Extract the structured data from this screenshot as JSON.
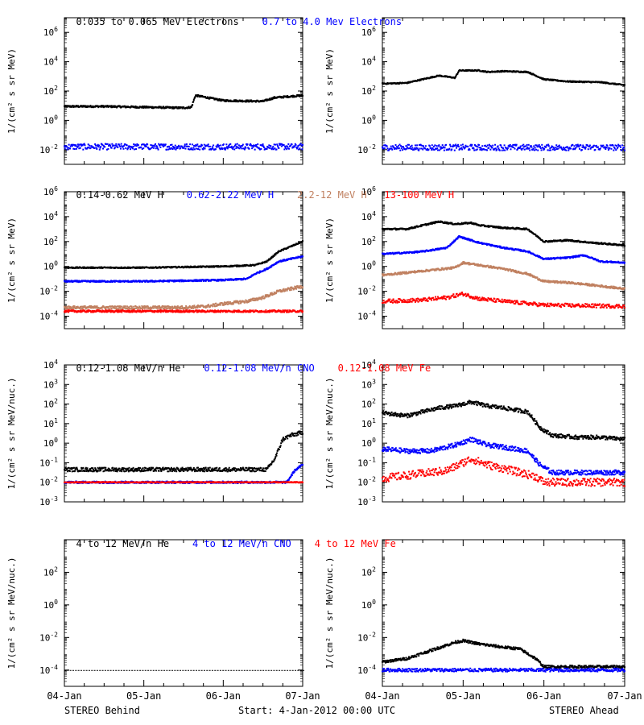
{
  "legends": [
    [
      {
        "text": "0.035 to 0.065 MeV Electrons",
        "color": "#000000"
      },
      {
        "text": "0.7 to 4.0 Mev Electrons",
        "color": "#0000ff"
      }
    ],
    [
      {
        "text": "0.14-0.62 MeV H",
        "color": "#000000"
      },
      {
        "text": "0.62-2.22 MeV H",
        "color": "#0000ff"
      },
      {
        "text": "2.2-12 MeV H",
        "color": "#c08060"
      },
      {
        "text": "13-100 MeV H",
        "color": "#ff0000"
      }
    ],
    [
      {
        "text": "0.12-1.08 MeV/n He",
        "color": "#000000"
      },
      {
        "text": "0.12-1.08 MeV/n CNO",
        "color": "#0000ff"
      },
      {
        "text": "0.12-1.08 MeV Fe",
        "color": "#ff0000"
      }
    ],
    [
      {
        "text": "4 to 12 MeV/n He",
        "color": "#000000"
      },
      {
        "text": "4 to 12 MeV/n CNO",
        "color": "#0000ff"
      },
      {
        "text": "4 to 12 MeV Fe",
        "color": "#ff0000"
      }
    ]
  ],
  "footer": {
    "left": "STEREO Behind",
    "center": "Start:  4-Jan-2012 00:00 UTC",
    "right": "STEREO Ahead"
  },
  "chart_data": [
    {
      "type": "scatter",
      "row": 0,
      "side": "left",
      "ylabel": "1/(cm² s sr MeV)",
      "yscale": "log",
      "ylim": [
        -3,
        7
      ],
      "yticks": [
        {
          "exp": -2,
          "label": "10",
          "sup": "-2"
        },
        {
          "exp": 0,
          "label": "10",
          "sup": "0"
        },
        {
          "exp": 2,
          "label": "10",
          "sup": "2"
        },
        {
          "exp": 4,
          "label": "10",
          "sup": "4"
        },
        {
          "exp": 6,
          "label": "10",
          "sup": "6"
        }
      ],
      "xlim": [
        0,
        3
      ],
      "series": [
        {
          "name": "0.035 to 0.065 MeV Electrons",
          "color": "#000000",
          "x": [
            0,
            0.5,
            1,
            1.5,
            1.6,
            1.65,
            2,
            2.5,
            2.65,
            3
          ],
          "y": [
            0.95,
            0.95,
            0.9,
            0.85,
            0.9,
            1.7,
            1.35,
            1.3,
            1.55,
            1.7
          ],
          "noise": 0.06,
          "style": "dense"
        },
        {
          "name": "0.7 to 4.0 Mev Electrons",
          "color": "#0000ff",
          "x": [
            0,
            3
          ],
          "y": [
            -1.8,
            -1.8
          ],
          "noise": 0.2,
          "style": "scatter"
        }
      ]
    },
    {
      "type": "scatter",
      "row": 0,
      "side": "right",
      "ylabel": "1/(cm² s sr MeV)",
      "yscale": "log",
      "ylim": [
        -3,
        7
      ],
      "yticks": [
        {
          "exp": -2,
          "label": "10",
          "sup": "-2"
        },
        {
          "exp": 0,
          "label": "10",
          "sup": "0"
        },
        {
          "exp": 2,
          "label": "10",
          "sup": "2"
        },
        {
          "exp": 4,
          "label": "10",
          "sup": "4"
        },
        {
          "exp": 6,
          "label": "10",
          "sup": "6"
        }
      ],
      "xlim": [
        0,
        3
      ],
      "series": [
        {
          "name": "0.035 to 0.065 MeV Electrons",
          "color": "#000000",
          "x": [
            0,
            0.3,
            0.5,
            0.7,
            0.9,
            0.95,
            1.2,
            1.3,
            1.5,
            1.8,
            2.0,
            2.3,
            2.7,
            3
          ],
          "y": [
            2.5,
            2.55,
            2.8,
            3.05,
            2.9,
            3.4,
            3.4,
            3.3,
            3.35,
            3.3,
            2.8,
            2.65,
            2.6,
            2.4
          ],
          "noise": 0.04,
          "style": "dense"
        },
        {
          "name": "0.7 to 4.0 Mev Electrons",
          "color": "#0000ff",
          "x": [
            0,
            3
          ],
          "y": [
            -1.85,
            -1.85
          ],
          "noise": 0.2,
          "style": "scatter"
        }
      ]
    },
    {
      "type": "scatter",
      "row": 1,
      "side": "left",
      "ylabel": "1/(cm² s sr MeV)",
      "yscale": "log",
      "ylim": [
        -5,
        6
      ],
      "yticks": [
        {
          "exp": -4,
          "label": "10",
          "sup": "-4"
        },
        {
          "exp": -2,
          "label": "10",
          "sup": "-2"
        },
        {
          "exp": 0,
          "label": "10",
          "sup": "0"
        },
        {
          "exp": 2,
          "label": "10",
          "sup": "2"
        },
        {
          "exp": 4,
          "label": "10",
          "sup": "4"
        },
        {
          "exp": 6,
          "label": "10",
          "sup": "6"
        }
      ],
      "xlim": [
        0,
        3
      ],
      "series": [
        {
          "name": "0.14-0.62 MeV H",
          "color": "#000000",
          "x": [
            0,
            1,
            2,
            2.4,
            2.55,
            2.7,
            2.85,
            3
          ],
          "y": [
            -0.1,
            -0.1,
            0.0,
            0.1,
            0.4,
            1.2,
            1.6,
            2.0
          ],
          "noise": 0.05,
          "style": "dense"
        },
        {
          "name": "0.62-2.22 MeV H",
          "color": "#0000ff",
          "x": [
            0,
            1,
            2,
            2.3,
            2.4,
            2.55,
            2.7,
            2.85,
            3
          ],
          "y": [
            -1.2,
            -1.2,
            -1.1,
            -1.0,
            -0.6,
            -0.2,
            0.4,
            0.6,
            0.8
          ],
          "noise": 0.06,
          "style": "dense"
        },
        {
          "name": "2.2-12 MeV H",
          "color": "#c08060",
          "x": [
            0,
            1.5,
            1.8,
            2.0,
            2.3,
            2.5,
            2.7,
            3
          ],
          "y": [
            -3.3,
            -3.3,
            -3.2,
            -3.0,
            -2.8,
            -2.5,
            -2.0,
            -1.6
          ],
          "noise": 0.12,
          "style": "dense"
        },
        {
          "name": "13-100 MeV H",
          "color": "#ff0000",
          "x": [
            0,
            3
          ],
          "y": [
            -3.6,
            -3.6
          ],
          "noise": 0.08,
          "style": "dense"
        }
      ]
    },
    {
      "type": "scatter",
      "row": 1,
      "side": "right",
      "ylabel": "1/(cm² s sr MeV)",
      "yscale": "log",
      "ylim": [
        -5,
        6
      ],
      "yticks": [
        {
          "exp": -4,
          "label": "10",
          "sup": "-4"
        },
        {
          "exp": -2,
          "label": "10",
          "sup": "-2"
        },
        {
          "exp": 0,
          "label": "10",
          "sup": "0"
        },
        {
          "exp": 2,
          "label": "10",
          "sup": "2"
        },
        {
          "exp": 4,
          "label": "10",
          "sup": "4"
        },
        {
          "exp": 6,
          "label": "10",
          "sup": "6"
        }
      ],
      "xlim": [
        0,
        3
      ],
      "series": [
        {
          "name": "0.14-0.62 MeV H",
          "color": "#000000",
          "x": [
            0,
            0.3,
            0.5,
            0.7,
            0.9,
            1.1,
            1.2,
            1.5,
            1.8,
            2.0,
            2.3,
            2.6,
            3
          ],
          "y": [
            3.0,
            3.0,
            3.3,
            3.6,
            3.4,
            3.5,
            3.3,
            3.1,
            3.0,
            2.0,
            2.1,
            1.9,
            1.7
          ],
          "noise": 0.06,
          "style": "dense"
        },
        {
          "name": "0.62-2.22 MeV H",
          "color": "#0000ff",
          "x": [
            0,
            0.3,
            0.5,
            0.8,
            0.95,
            1.2,
            1.5,
            1.8,
            2.0,
            2.3,
            2.5,
            2.7,
            3
          ],
          "y": [
            1.0,
            1.1,
            1.2,
            1.5,
            2.4,
            1.9,
            1.5,
            1.2,
            0.6,
            0.7,
            0.9,
            0.4,
            0.3
          ],
          "noise": 0.06,
          "style": "dense"
        },
        {
          "name": "2.2-12 MeV H",
          "color": "#c08060",
          "x": [
            0,
            0.3,
            0.6,
            0.9,
            1.0,
            1.2,
            1.5,
            1.8,
            2.0,
            2.3,
            2.6,
            3
          ],
          "y": [
            -0.7,
            -0.5,
            -0.3,
            -0.1,
            0.3,
            0.1,
            -0.2,
            -0.6,
            -1.2,
            -1.3,
            -1.5,
            -1.8
          ],
          "noise": 0.08,
          "style": "dense"
        },
        {
          "name": "13-100 MeV H",
          "color": "#ff0000",
          "x": [
            0,
            0.5,
            0.8,
            1.0,
            1.2,
            1.5,
            2.0,
            3
          ],
          "y": [
            -2.8,
            -2.7,
            -2.5,
            -2.2,
            -2.6,
            -2.8,
            -3.1,
            -3.2
          ],
          "noise": 0.15,
          "style": "scatter"
        }
      ]
    },
    {
      "type": "scatter",
      "row": 2,
      "side": "left",
      "ylabel": "1/(cm² s sr MeV/nuc.)",
      "yscale": "log",
      "ylim": [
        -3,
        4
      ],
      "yticks": [
        {
          "exp": -3,
          "label": "10",
          "sup": "-3"
        },
        {
          "exp": -2,
          "label": "10",
          "sup": "-2"
        },
        {
          "exp": -1,
          "label": "10",
          "sup": "-1"
        },
        {
          "exp": 0,
          "label": "10",
          "sup": "0"
        },
        {
          "exp": 1,
          "label": "10",
          "sup": "1"
        },
        {
          "exp": 2,
          "label": "10",
          "sup": "2"
        },
        {
          "exp": 3,
          "label": "10",
          "sup": "3"
        },
        {
          "exp": 4,
          "label": "10",
          "sup": "4"
        }
      ],
      "xlim": [
        0,
        3
      ],
      "series": [
        {
          "name": "0.12-1.08 MeV/n He",
          "color": "#000000",
          "x": [
            0,
            2.55,
            2.65,
            2.75,
            2.85,
            3
          ],
          "y": [
            -1.35,
            -1.35,
            -0.8,
            0.2,
            0.4,
            0.55
          ],
          "noise": 0.1,
          "style": "dense"
        },
        {
          "name": "0.12-1.08 MeV/n CNO",
          "color": "#0000ff",
          "x": [
            0,
            2.8,
            2.9,
            3
          ],
          "y": [
            -2.0,
            -2.0,
            -1.4,
            -1.1
          ],
          "noise": 0.05,
          "style": "dense"
        },
        {
          "name": "0.12-1.08 MeV Fe",
          "color": "#ff0000",
          "x": [
            0,
            3
          ],
          "y": [
            -2.0,
            -2.0
          ],
          "noise": 0.02,
          "style": "dense"
        }
      ]
    },
    {
      "type": "scatter",
      "row": 2,
      "side": "right",
      "ylabel": "1/(cm² s sr MeV/nuc.)",
      "yscale": "log",
      "ylim": [
        -3,
        4
      ],
      "yticks": [
        {
          "exp": -3,
          "label": "10",
          "sup": "-3"
        },
        {
          "exp": -2,
          "label": "10",
          "sup": "-2"
        },
        {
          "exp": -1,
          "label": "10",
          "sup": "-1"
        },
        {
          "exp": 0,
          "label": "10",
          "sup": "0"
        },
        {
          "exp": 1,
          "label": "10",
          "sup": "1"
        },
        {
          "exp": 2,
          "label": "10",
          "sup": "2"
        },
        {
          "exp": 3,
          "label": "10",
          "sup": "3"
        },
        {
          "exp": 4,
          "label": "10",
          "sup": "4"
        }
      ],
      "xlim": [
        0,
        3
      ],
      "series": [
        {
          "name": "0.12-1.08 MeV/n He",
          "color": "#000000",
          "x": [
            0,
            0.3,
            0.5,
            0.7,
            0.9,
            1.1,
            1.3,
            1.5,
            1.8,
            1.95,
            2.1,
            2.4,
            2.7,
            3
          ],
          "y": [
            1.55,
            1.4,
            1.6,
            1.8,
            1.9,
            2.1,
            1.9,
            1.8,
            1.6,
            0.8,
            0.4,
            0.3,
            0.3,
            0.2
          ],
          "noise": 0.1,
          "style": "dense"
        },
        {
          "name": "0.12-1.08 MeV/n CNO",
          "color": "#0000ff",
          "x": [
            0,
            0.3,
            0.6,
            0.9,
            1.1,
            1.3,
            1.5,
            1.8,
            1.95,
            2.1,
            3
          ],
          "y": [
            -0.3,
            -0.4,
            -0.4,
            -0.1,
            0.2,
            -0.1,
            -0.2,
            -0.4,
            -1.1,
            -1.5,
            -1.5
          ],
          "noise": 0.12,
          "style": "dense"
        },
        {
          "name": "0.12-1.08 MeV Fe",
          "color": "#ff0000",
          "x": [
            0,
            0.4,
            0.8,
            1.1,
            1.3,
            1.6,
            1.9,
            2.0,
            3
          ],
          "y": [
            -1.8,
            -1.6,
            -1.4,
            -0.8,
            -1.1,
            -1.4,
            -1.7,
            -2.0,
            -2.0
          ],
          "noise": 0.2,
          "style": "scatter"
        }
      ]
    },
    {
      "type": "scatter",
      "row": 3,
      "side": "left",
      "ylabel": "1/(cm² s sr MeV/nuc.)",
      "yscale": "log",
      "ylim": [
        -5,
        4
      ],
      "yticks": [
        {
          "exp": -4,
          "label": "10",
          "sup": "-4"
        },
        {
          "exp": -2,
          "label": "10",
          "sup": "-2"
        },
        {
          "exp": 0,
          "label": "10",
          "sup": "0"
        },
        {
          "exp": 2,
          "label": "10",
          "sup": "2"
        }
      ],
      "xlim": [
        0,
        3
      ],
      "xticks": [
        "04-Jan",
        "05-Jan",
        "06-Jan",
        "07-Jan"
      ],
      "series": [
        {
          "name": "4 to 12 MeV/n He",
          "color": "#000000",
          "x": [
            0,
            3
          ],
          "y": [
            -4.0,
            -4.0
          ],
          "noise": 0.0,
          "style": "sparse"
        }
      ]
    },
    {
      "type": "scatter",
      "row": 3,
      "side": "right",
      "ylabel": "1/(cm² s sr MeV/nuc.)",
      "yscale": "log",
      "ylim": [
        -5,
        4
      ],
      "yticks": [
        {
          "exp": -4,
          "label": "10",
          "sup": "-4"
        },
        {
          "exp": -2,
          "label": "10",
          "sup": "-2"
        },
        {
          "exp": 0,
          "label": "10",
          "sup": "0"
        },
        {
          "exp": 2,
          "label": "10",
          "sup": "2"
        }
      ],
      "xlim": [
        0,
        3
      ],
      "xticks": [
        "04-Jan",
        "05-Jan",
        "06-Jan",
        "07-Jan"
      ],
      "series": [
        {
          "name": "4 to 12 MeV/n He",
          "color": "#000000",
          "x": [
            0,
            0.3,
            0.6,
            0.9,
            1.0,
            1.2,
            1.5,
            1.7,
            1.9,
            2.0,
            3
          ],
          "y": [
            -3.5,
            -3.3,
            -2.8,
            -2.3,
            -2.2,
            -2.4,
            -2.6,
            -2.7,
            -3.3,
            -3.8,
            -3.8
          ],
          "noise": 0.08,
          "style": "dense"
        },
        {
          "name": "4 to 12 MeV/n CNO",
          "color": "#0000ff",
          "x": [
            0,
            0.8,
            1.0,
            1.2,
            1.5,
            3
          ],
          "y": [
            -4.0,
            -4.0,
            -4.0,
            -4.0,
            -4.0,
            -4.0
          ],
          "noise": 0.1,
          "style": "scatter"
        },
        {
          "name": "4 to 12 MeV Fe",
          "color": "#ff0000",
          "x": [],
          "y": [],
          "noise": 0,
          "style": "scatter"
        }
      ]
    }
  ]
}
